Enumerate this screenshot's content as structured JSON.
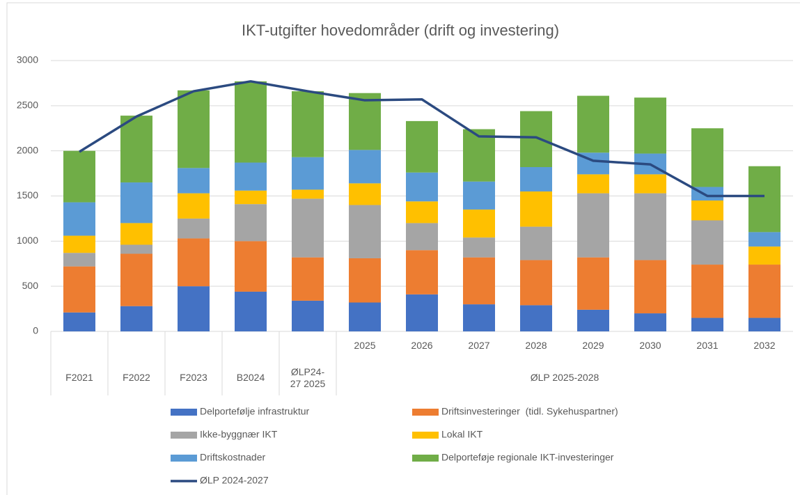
{
  "chart_data": {
    "type": "bar",
    "stacked": true,
    "title": "IKT-utgifter hovedområder (drift og investering)",
    "categories": [
      "F2021",
      "F2022",
      "F2023",
      "B2024",
      "ØLP24-27 2025",
      "2025",
      "2026",
      "2027",
      "2028",
      "2029",
      "2030",
      "2031",
      "2032"
    ],
    "groups": [
      {
        "label": null,
        "span": 5
      },
      {
        "label": "ØLP 2025-2028",
        "span": 8
      }
    ],
    "series": [
      {
        "name": "Delportefølje infrastruktur",
        "color": "#4472c4",
        "values": [
          210,
          280,
          500,
          440,
          340,
          320,
          410,
          300,
          290,
          240,
          200,
          150,
          150
        ]
      },
      {
        "name": "Driftsinvesteringer  (tidl. Sykehuspartner)",
        "color": "#ed7d31",
        "values": [
          510,
          580,
          530,
          560,
          480,
          490,
          490,
          520,
          500,
          580,
          590,
          590,
          590
        ]
      },
      {
        "name": "Ikke-byggnær IKT",
        "color": "#a5a5a5",
        "values": [
          150,
          100,
          220,
          410,
          650,
          590,
          300,
          220,
          370,
          710,
          740,
          490,
          0
        ]
      },
      {
        "name": "Lokal IKT",
        "color": "#ffc000",
        "values": [
          190,
          240,
          280,
          150,
          100,
          240,
          240,
          310,
          390,
          210,
          210,
          220,
          200
        ]
      },
      {
        "name": "Driftskostnader",
        "color": "#5b9bd5",
        "values": [
          370,
          450,
          280,
          310,
          360,
          370,
          320,
          310,
          270,
          240,
          230,
          150,
          160
        ]
      },
      {
        "name": "Delporteføje regionale IKT-investeringer",
        "color": "#70ad47",
        "values": [
          570,
          740,
          860,
          900,
          730,
          630,
          570,
          580,
          620,
          630,
          620,
          650,
          730
        ]
      },
      {
        "name": "ØLP 2024-2027",
        "type": "line",
        "color": "#2b4a80",
        "values": [
          1990,
          2380,
          2660,
          2770,
          2660,
          2560,
          2570,
          2160,
          2150,
          1890,
          1850,
          1500,
          1500
        ]
      }
    ],
    "ylim": [
      0,
      3000
    ],
    "yticks": [
      0,
      500,
      1000,
      1500,
      2000,
      2500,
      3000
    ],
    "grid": true
  }
}
